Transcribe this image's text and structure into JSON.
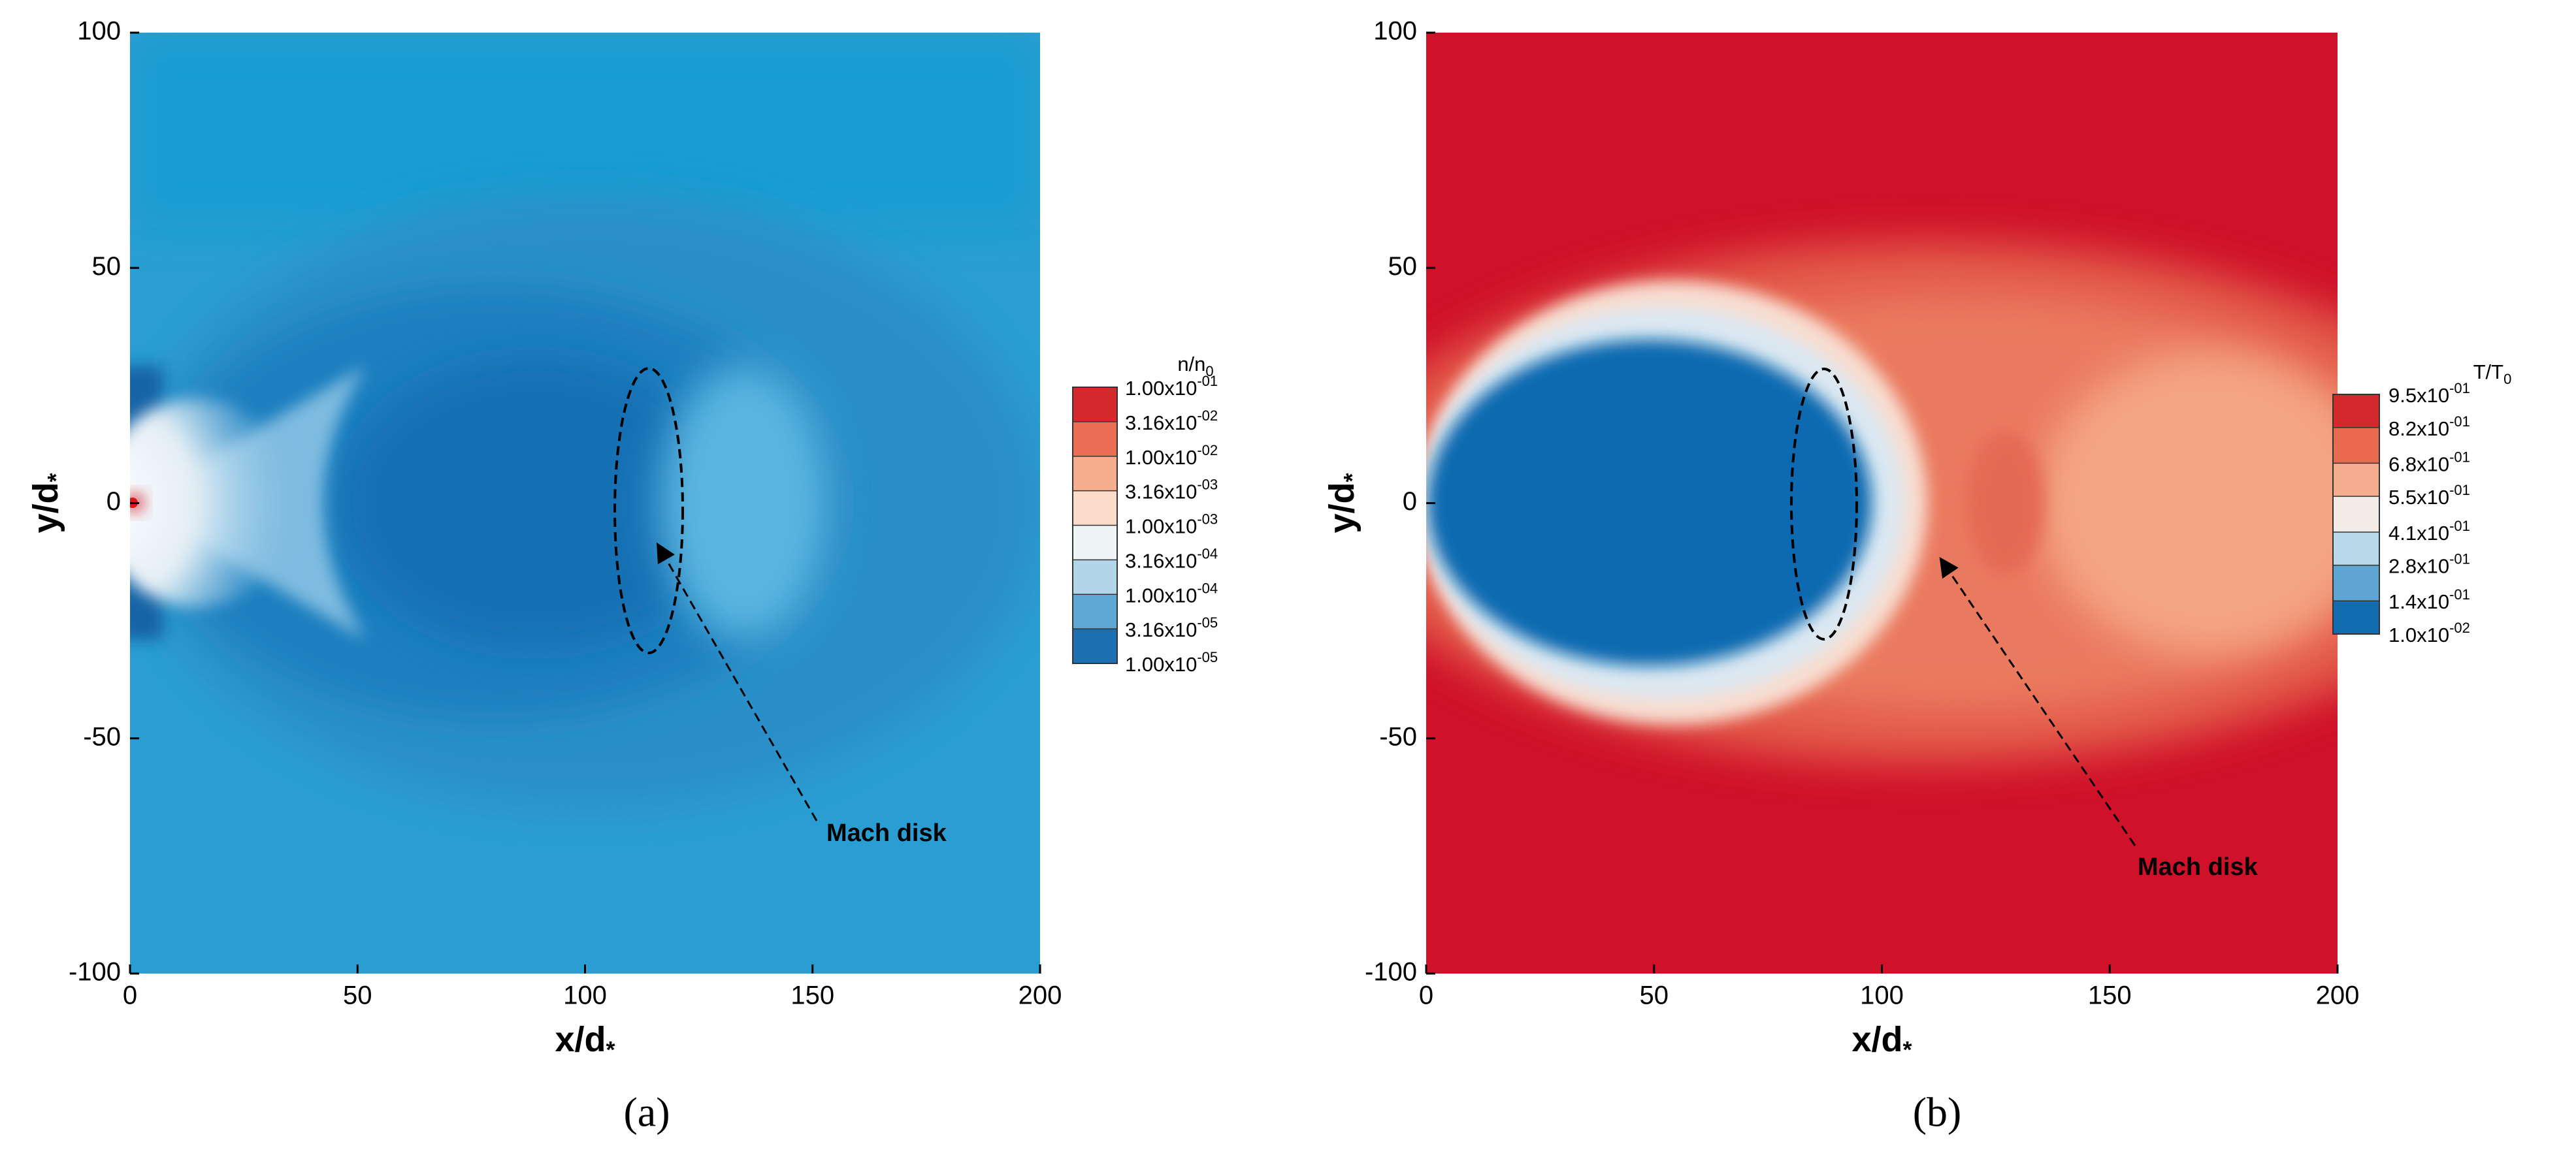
{
  "chart_data": [
    {
      "type": "contour",
      "xlabel": "x/d",
      "xlabel_sub": "*",
      "ylabel": "y/d",
      "ylabel_sub": "*",
      "xlim": [
        0,
        200
      ],
      "xticks": [
        0,
        50,
        100,
        150,
        200
      ],
      "ylim": [
        -100,
        100
      ],
      "yticks": [
        -100,
        -50,
        0,
        50,
        100
      ],
      "colorbar": {
        "title": "n/n",
        "title_sub": "0",
        "log": true,
        "clim": [
          1e-05,
          0.1
        ],
        "ticks": [
          {
            "value": 0.1,
            "label": "1.00x10",
            "exp": "-01"
          },
          {
            "value": 0.0316,
            "label": "3.16x10",
            "exp": "-02"
          },
          {
            "value": 0.01,
            "label": "1.00x10",
            "exp": "-02"
          },
          {
            "value": 0.00316,
            "label": "3.16x10",
            "exp": "-03"
          },
          {
            "value": 0.001,
            "label": "1.00x10",
            "exp": "-03"
          },
          {
            "value": 0.000316,
            "label": "3.16x10",
            "exp": "-04"
          },
          {
            "value": 0.0001,
            "label": "1.00x10",
            "exp": "-04"
          },
          {
            "value": 3.16e-05,
            "label": "3.16x10",
            "exp": "-05"
          },
          {
            "value": 1e-05,
            "label": "1.00x10",
            "exp": "-05"
          }
        ],
        "colors": [
          "#d42a2e",
          "#ec6f55",
          "#f6ad8e",
          "#fbdccb",
          "#eef3f6",
          "#b3d5ea",
          "#5fa7d5",
          "#1b6fb2"
        ]
      },
      "annotation": "Mach disk",
      "panel_label": "(a)"
    },
    {
      "type": "contour",
      "xlabel": "x/d",
      "xlabel_sub": "*",
      "ylabel": "y/d",
      "ylabel_sub": "*",
      "xlim": [
        0,
        200
      ],
      "xticks": [
        0,
        50,
        100,
        150,
        200
      ],
      "ylim": [
        -100,
        100
      ],
      "yticks": [
        -100,
        -50,
        0,
        50,
        100
      ],
      "colorbar": {
        "title": "T/T",
        "title_sub": "0",
        "log": false,
        "clim": [
          0.01,
          0.95
        ],
        "ticks": [
          {
            "value": 0.95,
            "label": "9.5x10",
            "exp": "-01"
          },
          {
            "value": 0.82,
            "label": "8.2x10",
            "exp": "-01"
          },
          {
            "value": 0.68,
            "label": "6.8x10",
            "exp": "-01"
          },
          {
            "value": 0.55,
            "label": "5.5x10",
            "exp": "-01"
          },
          {
            "value": 0.41,
            "label": "4.1x10",
            "exp": "-01"
          },
          {
            "value": 0.28,
            "label": "2.8x10",
            "exp": "-01"
          },
          {
            "value": 0.14,
            "label": "1.4x10",
            "exp": "-01"
          },
          {
            "value": 0.01,
            "label": "1.0x10",
            "exp": "-02"
          }
        ],
        "colors": [
          "#d42a2e",
          "#ea6a50",
          "#f5ad90",
          "#f3ece6",
          "#b9d8ea",
          "#5ea5d3",
          "#136bb0"
        ]
      },
      "annotation": "Mach disk",
      "panel_label": "(b)"
    }
  ]
}
